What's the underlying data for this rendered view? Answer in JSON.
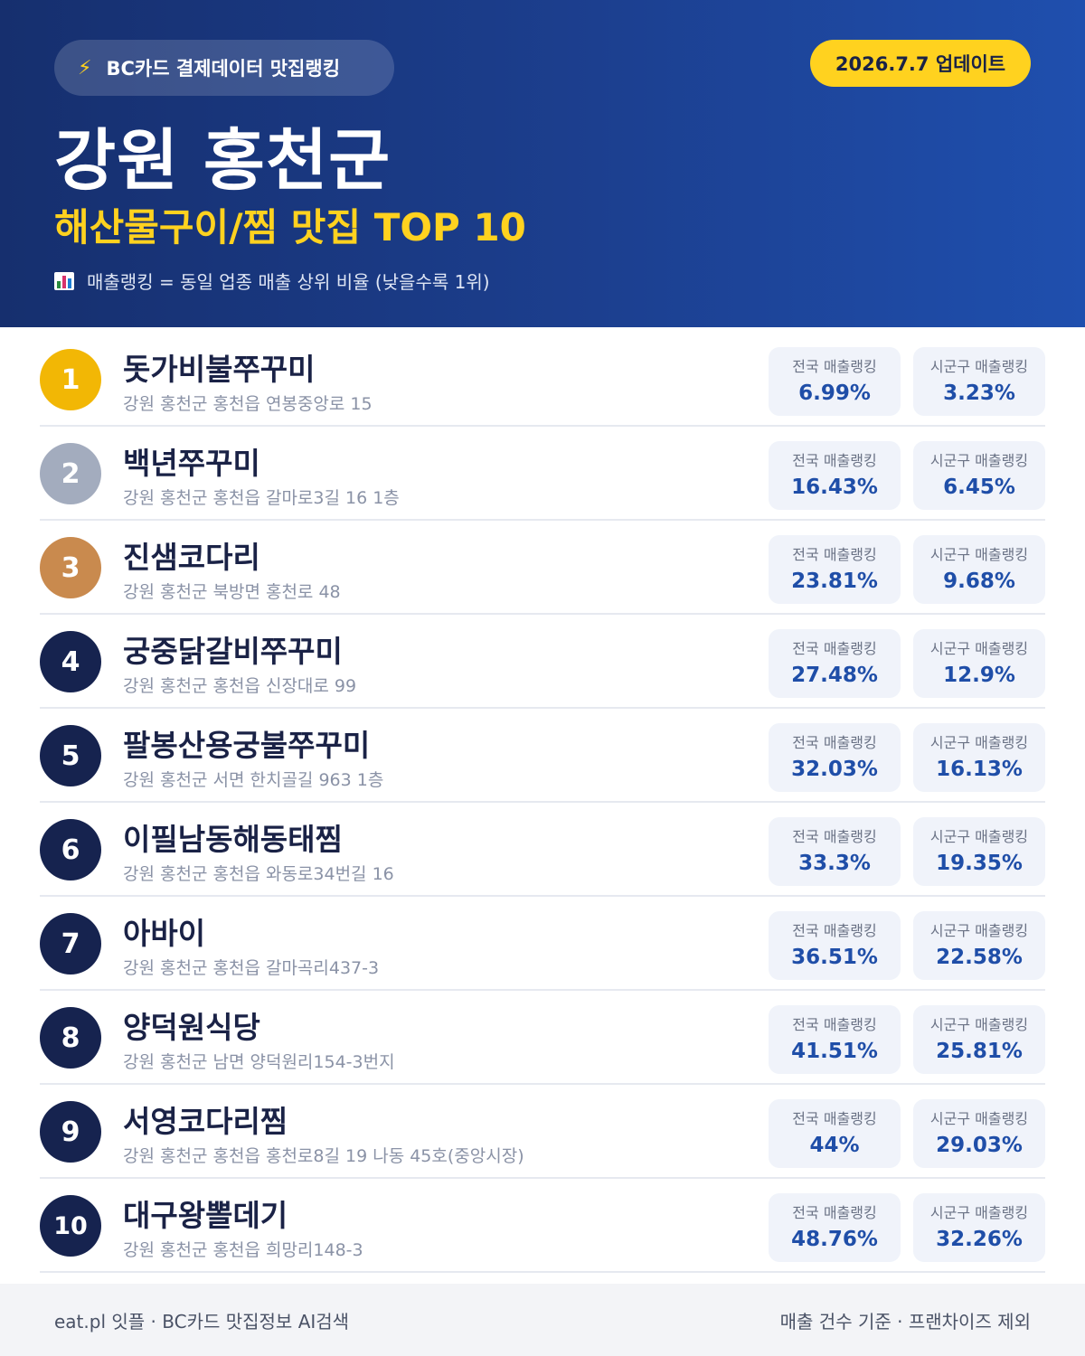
{
  "header": {
    "brand_icon": "lightning-bolt-icon",
    "brand_text": "BC카드 결제데이터 맛집랭킹",
    "update_text": "2026.7.7 업데이트",
    "title": "강원 홍천군",
    "subtitle": "해산물구이/찜 맛집 TOP 10",
    "note_icon": "bar-chart-icon",
    "note": "매출랭킹 = 동일 업종 매출 상위 비율 (낮을수록 1위)"
  },
  "stat_labels": {
    "national": "전국 매출랭킹",
    "district": "시군구 매출랭킹"
  },
  "restaurants": [
    {
      "rank": "1",
      "name": "돗가비불쭈꾸미",
      "address": "강원 홍천군 홍천읍 연봉중앙로 15",
      "national": "6.99%",
      "district": "3.23%"
    },
    {
      "rank": "2",
      "name": "백년쭈꾸미",
      "address": "강원 홍천군 홍천읍 갈마로3길 16 1층",
      "national": "16.43%",
      "district": "6.45%"
    },
    {
      "rank": "3",
      "name": "진샘코다리",
      "address": "강원 홍천군 북방면 홍천로 48",
      "national": "23.81%",
      "district": "9.68%"
    },
    {
      "rank": "4",
      "name": "궁중닭갈비쭈꾸미",
      "address": "강원 홍천군 홍천읍 신장대로 99",
      "national": "27.48%",
      "district": "12.9%"
    },
    {
      "rank": "5",
      "name": "팔봉산용궁불쭈꾸미",
      "address": "강원 홍천군 서면 한치골길 963 1층",
      "national": "32.03%",
      "district": "16.13%"
    },
    {
      "rank": "6",
      "name": "이필남동해동태찜",
      "address": "강원 홍천군 홍천읍 와동로34번길 16",
      "national": "33.3%",
      "district": "19.35%"
    },
    {
      "rank": "7",
      "name": "아바이",
      "address": "강원 홍천군 홍천읍 갈마곡리437-3",
      "national": "36.51%",
      "district": "22.58%"
    },
    {
      "rank": "8",
      "name": "양덕원식당",
      "address": "강원 홍천군 남면 양덕원리154-3번지",
      "national": "41.51%",
      "district": "25.81%"
    },
    {
      "rank": "9",
      "name": "서영코다리찜",
      "address": "강원 홍천군 홍천읍 홍천로8길 19 나동 45호(중앙시장)",
      "national": "44%",
      "district": "29.03%"
    },
    {
      "rank": "10",
      "name": "대구왕뽈데기",
      "address": "강원 홍천군 홍천읍 희망리148-3",
      "national": "48.76%",
      "district": "32.26%"
    }
  ],
  "footer": {
    "left": "eat.pl 잇플 · BC카드 맛집정보 AI검색",
    "right": "매출 건수 기준 · 프랜차이즈 제외"
  },
  "colors": {
    "header_dark": "#162f6e",
    "header_light": "#1f4fae",
    "accent_yellow": "#ffd21f",
    "gold": "#f2b705",
    "silver": "#a3acbe",
    "bronze": "#c98a4e",
    "navy": "#16234f",
    "stat_value": "#1f4ea8"
  }
}
